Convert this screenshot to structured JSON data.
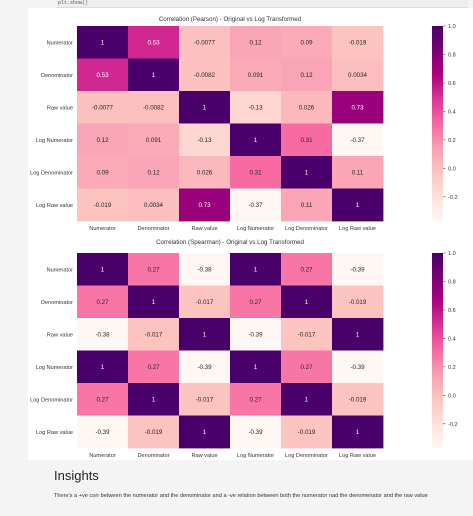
{
  "code_cell": {
    "text": "plt.show()"
  },
  "insights": {
    "title": "Insights",
    "text": "There's a +ve corr between the numerator and the denominator and a -ve relation between both the numerator nad the denomenator and the raw value"
  },
  "colorbar": {
    "ticks": [
      1.0,
      0.8,
      0.6,
      0.4,
      0.2,
      0.0,
      -0.2
    ],
    "tick_labels": [
      "1.0",
      "0.8",
      "0.6",
      "0.4",
      "0.2",
      "0.0",
      "-0.2"
    ],
    "range": [
      -0.37,
      1.0
    ]
  },
  "colors": {
    "colormap": "RdPu",
    "stops": [
      "#fff7f3",
      "#fde0dd",
      "#fcc5c0",
      "#fa9fb5",
      "#f768a1",
      "#dd3497",
      "#ae017e",
      "#7a0177",
      "#49006a"
    ]
  },
  "chart_data": [
    {
      "type": "heatmap",
      "title": "Correlation (Pearson) - Original vs Log Transformed",
      "rows": [
        "Numerator",
        "Denominator",
        "Raw value",
        "Log Numerator",
        "Log Denominator",
        "Log Raw value"
      ],
      "columns": [
        "Numerator",
        "Denominator",
        "Raw value",
        "Log Numerator",
        "Log Denominator",
        "Log Raw value"
      ],
      "values": [
        [
          1,
          0.53,
          -0.0077,
          0.12,
          0.09,
          -0.019
        ],
        [
          0.53,
          1,
          -0.0082,
          0.091,
          0.12,
          0.0034
        ],
        [
          -0.0077,
          -0.0082,
          1,
          -0.13,
          0.026,
          0.73
        ],
        [
          0.12,
          0.091,
          -0.13,
          1,
          0.31,
          -0.37
        ],
        [
          0.09,
          0.12,
          0.026,
          0.31,
          1,
          0.11
        ],
        [
          -0.019,
          0.0034,
          0.73,
          -0.37,
          0.11,
          1
        ]
      ],
      "labels": [
        [
          "1",
          "0.53",
          "-0.0077",
          "0.12",
          "0.09",
          "-0.019"
        ],
        [
          "0.53",
          "1",
          "-0.0082",
          "0.091",
          "0.12",
          "0.0034"
        ],
        [
          "-0.0077",
          "-0.0082",
          "1",
          "-0.13",
          "0.026",
          "0.73"
        ],
        [
          "0.12",
          "0.091",
          "-0.13",
          "1",
          "0.31",
          "-0.37"
        ],
        [
          "0.09",
          "0.12",
          "0.026",
          "0.31",
          "1",
          "0.11"
        ],
        [
          "-0.019",
          "0.0034",
          "0.73",
          "-0.37",
          "0.11",
          "1"
        ]
      ]
    },
    {
      "type": "heatmap",
      "title": "Correlation (Spearman) - Original vs Log Transformed",
      "rows": [
        "Numerator",
        "Denominator",
        "Raw value",
        "Log Numerator",
        "Log Denominator",
        "Log Raw value"
      ],
      "columns": [
        "Numerator",
        "Denominator",
        "Raw value",
        "Log Numerator",
        "Log Denominator",
        "Log Raw value"
      ],
      "values": [
        [
          1,
          0.27,
          -0.38,
          1,
          0.27,
          -0.39
        ],
        [
          0.27,
          1,
          -0.017,
          0.27,
          1,
          -0.019
        ],
        [
          -0.38,
          -0.017,
          1,
          -0.39,
          -0.017,
          1
        ],
        [
          1,
          0.27,
          -0.39,
          1,
          0.27,
          -0.39
        ],
        [
          0.27,
          1,
          -0.017,
          0.27,
          1,
          -0.019
        ],
        [
          -0.39,
          -0.019,
          1,
          -0.39,
          -0.019,
          1
        ]
      ],
      "labels": [
        [
          "1",
          "0.27",
          "-0.38",
          "1",
          "0.27",
          "-0.39"
        ],
        [
          "0.27",
          "1",
          "-0.017",
          "0.27",
          "1",
          "-0.019"
        ],
        [
          "-0.38",
          "-0.017",
          "1",
          "-0.39",
          "-0.017",
          "1"
        ],
        [
          "1",
          "0.27",
          "-0.39",
          "1",
          "0.27",
          "-0.39"
        ],
        [
          "0.27",
          "1",
          "-0.017",
          "0.27",
          "1",
          "-0.019"
        ],
        [
          "-0.39",
          "-0.019",
          "1",
          "-0.39",
          "-0.019",
          "1"
        ]
      ]
    }
  ]
}
